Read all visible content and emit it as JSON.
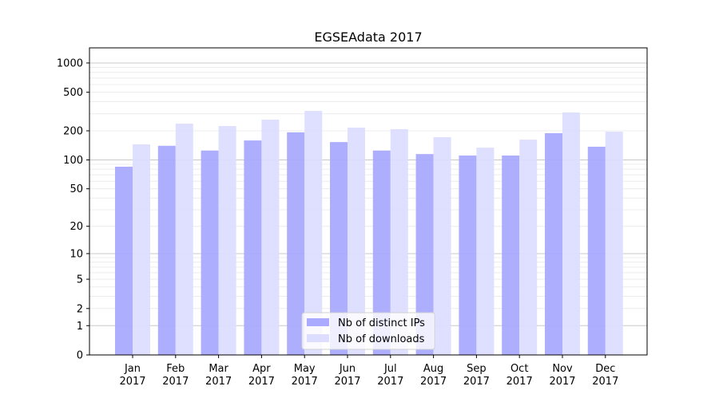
{
  "chart_data": {
    "type": "bar",
    "title": "EGSEAdata 2017",
    "xlabel": "",
    "ylabel": "",
    "yscale": "symlog (log10(1+y))",
    "ylim": [
      0,
      1300
    ],
    "yticks": [
      0,
      1,
      2,
      5,
      10,
      20,
      50,
      100,
      200,
      500,
      1000
    ],
    "grid": true,
    "legend_position": "bottom-center",
    "categories": [
      [
        "Jan",
        "2017"
      ],
      [
        "Feb",
        "2017"
      ],
      [
        "Mar",
        "2017"
      ],
      [
        "Apr",
        "2017"
      ],
      [
        "May",
        "2017"
      ],
      [
        "Jun",
        "2017"
      ],
      [
        "Jul",
        "2017"
      ],
      [
        "Aug",
        "2017"
      ],
      [
        "Sep",
        "2017"
      ],
      [
        "Oct",
        "2017"
      ],
      [
        "Nov",
        "2017"
      ],
      [
        "Dec",
        "2017"
      ]
    ],
    "series": [
      {
        "name": "Nb of distinct IPs",
        "color": "#aaaaff",
        "values": [
          85,
          140,
          125,
          159,
          193,
          153,
          125,
          115,
          111,
          111,
          189,
          137
        ]
      },
      {
        "name": "Nb of downloads",
        "color": "#ddddff",
        "values": [
          145,
          237,
          224,
          261,
          321,
          216,
          208,
          172,
          134,
          162,
          309,
          196
        ]
      }
    ]
  }
}
